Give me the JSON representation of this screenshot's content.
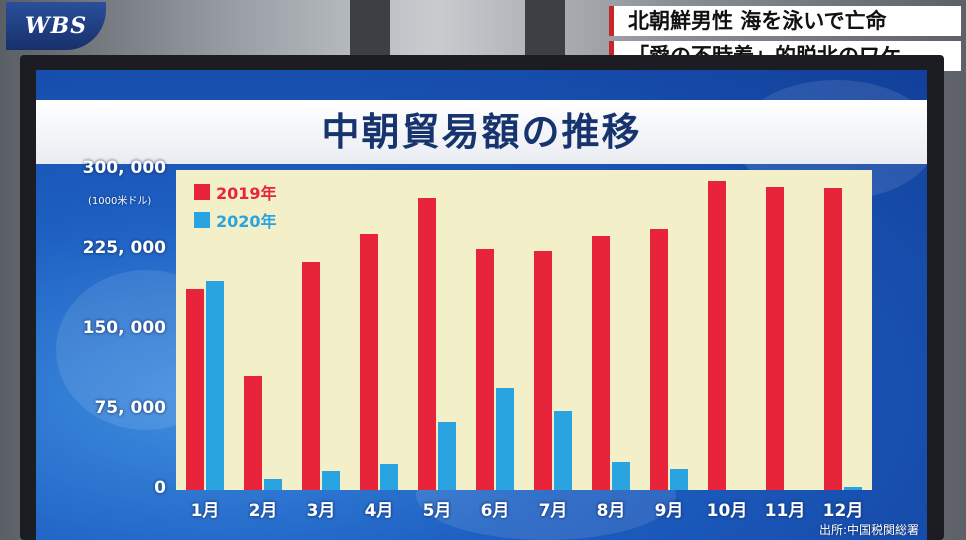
{
  "broadcast": {
    "logo": "WBS",
    "caption_line1": "北朝鮮男性 海を泳いで亡命",
    "caption_line2": "「愛の不時着」的脱北のワケ"
  },
  "colors": {
    "series_2019": "#e8243a",
    "series_2020": "#2aa4e0",
    "plot_bg": "#f3efc9"
  },
  "chart_data": {
    "type": "bar",
    "title": "中朝貿易額の推移",
    "ylabel": "(1000米ドル)",
    "xlabel": "",
    "ylim": [
      0,
      300000
    ],
    "yticks": [
      0,
      75000,
      150000,
      225000,
      300000
    ],
    "ytick_labels": [
      "0",
      "75, 000",
      "150, 000",
      "225, 000",
      "300, 000"
    ],
    "categories": [
      "1月",
      "2月",
      "3月",
      "4月",
      "5月",
      "6月",
      "7月",
      "8月",
      "9月",
      "10月",
      "11月",
      "12月"
    ],
    "series": [
      {
        "name": "2019年",
        "color": "#e8243a",
        "values": [
          188000,
          107000,
          214000,
          240000,
          274000,
          226000,
          224000,
          238000,
          245000,
          290000,
          284000,
          283000
        ]
      },
      {
        "name": "2020年",
        "color": "#2aa4e0",
        "values": [
          196000,
          10000,
          18000,
          24000,
          64000,
          96000,
          74000,
          26000,
          20000,
          null,
          null,
          3000
        ]
      }
    ],
    "legend_position": "top-left",
    "grid": false,
    "source": "出所:中国税関総署"
  }
}
